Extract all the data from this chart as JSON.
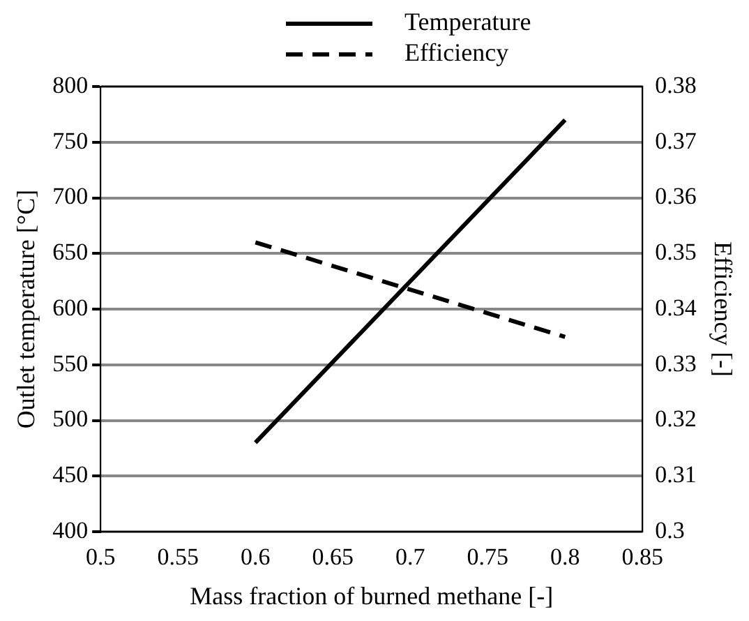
{
  "chart_data": {
    "type": "line",
    "xlabel": "Mass fraction of burned methane [-]",
    "ylabel": "Outlet temperature [°C]",
    "y2label": "Efficiency [-]",
    "x": [
      0.6,
      0.8
    ],
    "series": [
      {
        "name": "Temperature",
        "color": "#000000",
        "values": [
          480,
          770
        ],
        "line_style": "solid"
      },
      {
        "name": "Efficiency",
        "color": "#000000",
        "values": [
          0.352,
          0.335
        ],
        "axis": "y2",
        "line_style": "dashed"
      }
    ],
    "xlim": [
      0.5,
      0.85
    ],
    "xticks": [
      0.5,
      0.55,
      0.6,
      0.65,
      0.7,
      0.75,
      0.8,
      0.85
    ],
    "ylim": [
      400,
      800
    ],
    "yticks": [
      400,
      450,
      500,
      550,
      600,
      650,
      700,
      750,
      800
    ],
    "y2lim": [
      0.3,
      0.38
    ],
    "y2ticks": [
      0.3,
      0.31,
      0.32,
      0.33,
      0.34,
      0.35,
      0.36,
      0.37,
      0.38
    ],
    "grid": "y",
    "legend": "top",
    "marker": "none"
  }
}
